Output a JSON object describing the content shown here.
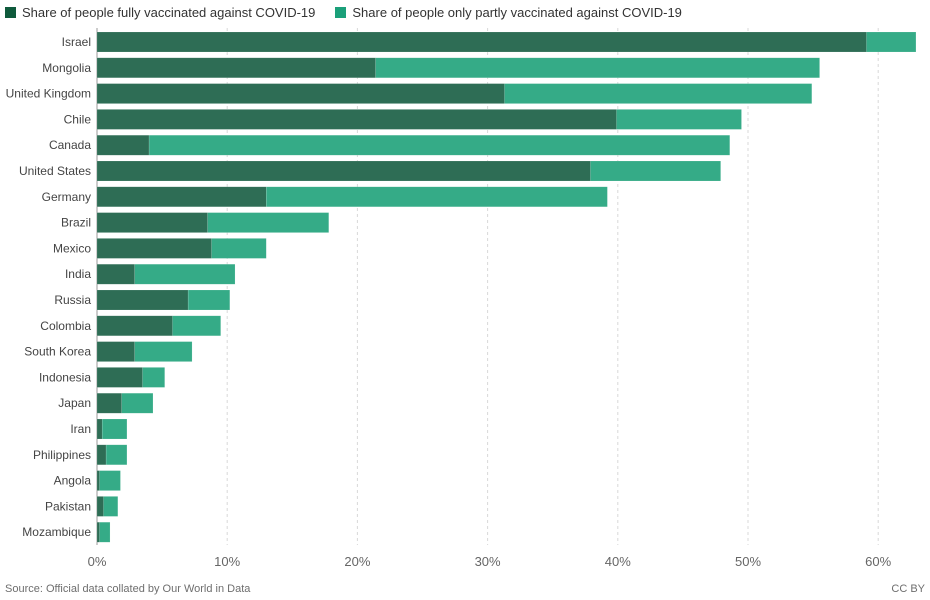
{
  "chart_data": {
    "type": "bar",
    "orientation": "horizontal",
    "stacked": true,
    "title": "",
    "xlabel": "",
    "ylabel": "",
    "xlim": [
      0,
      63
    ],
    "x_ticks": [
      0,
      10,
      20,
      30,
      40,
      50,
      60
    ],
    "x_tick_labels": [
      "0%",
      "10%",
      "20%",
      "30%",
      "40%",
      "50%",
      "60%"
    ],
    "grid": true,
    "legend_position": "top-left",
    "categories": [
      "Israel",
      "Mongolia",
      "United Kingdom",
      "Chile",
      "Canada",
      "United States",
      "Germany",
      "Brazil",
      "Mexico",
      "India",
      "Russia",
      "Colombia",
      "South Korea",
      "Indonesia",
      "Japan",
      "Iran",
      "Philippines",
      "Angola",
      "Pakistan",
      "Mozambique"
    ],
    "series": [
      {
        "name": "Share of people fully vaccinated against COVID-19",
        "color": "#2a6a52",
        "legend_color": "#0f5a3c",
        "values": [
          59.1,
          21.4,
          31.3,
          39.9,
          4.0,
          37.9,
          13.0,
          8.5,
          8.8,
          2.9,
          7.0,
          5.8,
          2.9,
          3.5,
          1.9,
          0.4,
          0.7,
          0.2,
          0.5,
          0.2
        ]
      },
      {
        "name": "Share of people only partly vaccinated against COVID-19",
        "color": "#31a985",
        "legend_color": "#1ba07a",
        "values": [
          3.8,
          34.1,
          23.6,
          9.6,
          44.6,
          10.0,
          26.2,
          9.3,
          4.2,
          7.7,
          3.2,
          3.7,
          4.4,
          1.7,
          2.4,
          1.9,
          1.6,
          1.6,
          1.1,
          0.8
        ]
      }
    ]
  },
  "footer": {
    "source": "Source: Official data collated by Our World in Data",
    "license": "CC BY"
  }
}
